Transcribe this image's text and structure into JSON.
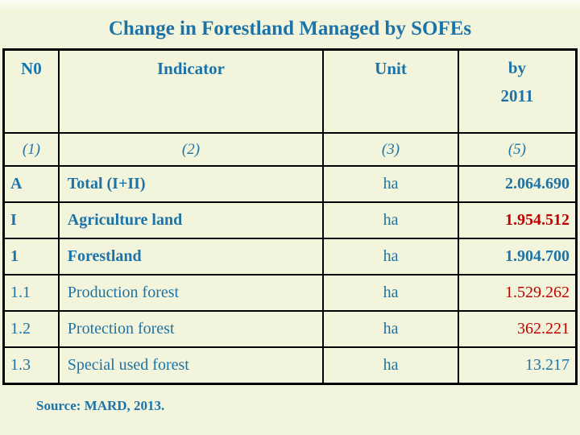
{
  "title": "Change in Forestland Managed by SOFEs",
  "source": "Source: MARD, 2013.",
  "colors": {
    "accent": "#1d73a7",
    "value_red": "#c00000",
    "slide_background": "#f2f5dc",
    "table_border": "#000000"
  },
  "table": {
    "header": {
      "no": "N0",
      "indicator": "Indicator",
      "unit": "Unit",
      "by": "by",
      "by_year": "2011"
    },
    "subheader": {
      "no": "(1)",
      "indicator": "(2)",
      "unit": "(3)",
      "by": "(5)"
    },
    "rows": [
      {
        "no": "A",
        "indicator": "Total (I+II)",
        "unit": "ha",
        "value": "2.064.690"
      },
      {
        "no": "I",
        "indicator": "Agriculture land",
        "unit": "ha",
        "value": "1.954.512"
      },
      {
        "no": "1",
        "indicator": "Forestland",
        "unit": "ha",
        "value": "1.904.700"
      },
      {
        "no": "1.1",
        "indicator": "Production forest",
        "unit": "ha",
        "value": "1.529.262"
      },
      {
        "no": "1.2",
        "indicator": "Protection forest",
        "unit": "ha",
        "value": "362.221"
      },
      {
        "no": "1.3",
        "indicator": "Special used forest",
        "unit": "ha",
        "value": "13.217"
      }
    ]
  }
}
